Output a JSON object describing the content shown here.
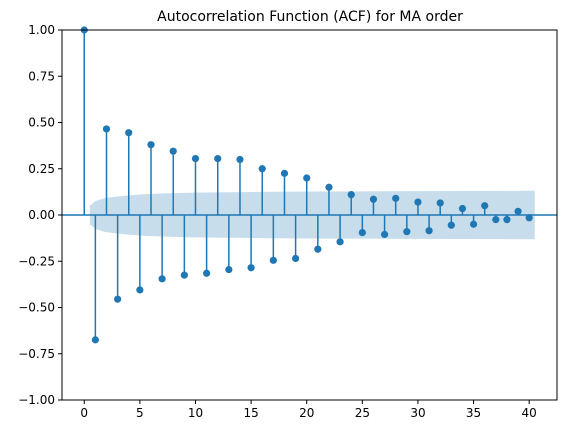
{
  "chart_data": {
    "type": "stem",
    "title": "Autocorrelation Function (ACF) for MA order",
    "xlabel": "",
    "ylabel": "",
    "xlim": [
      -2,
      42.5
    ],
    "ylim": [
      -1.0,
      1.0
    ],
    "xticks": [
      0,
      5,
      10,
      15,
      20,
      25,
      30,
      35,
      40
    ],
    "yticks": [
      -1.0,
      -0.75,
      -0.5,
      -0.25,
      0.0,
      0.25,
      0.5,
      0.75,
      1.0
    ],
    "ytick_labels": [
      "−1.00",
      "−0.75",
      "−0.50",
      "−0.25",
      "0.00",
      "0.25",
      "0.50",
      "0.75",
      "1.00"
    ],
    "grid": false,
    "lags": [
      0,
      1,
      2,
      3,
      4,
      5,
      6,
      7,
      8,
      9,
      10,
      11,
      12,
      13,
      14,
      15,
      16,
      17,
      18,
      19,
      20,
      21,
      22,
      23,
      24,
      25,
      26,
      27,
      28,
      29,
      30,
      31,
      32,
      33,
      34,
      35,
      36,
      37,
      38,
      39,
      40
    ],
    "values": [
      1.0,
      -0.675,
      0.465,
      -0.455,
      0.445,
      -0.405,
      0.38,
      -0.345,
      0.345,
      -0.325,
      0.305,
      -0.315,
      0.305,
      -0.295,
      0.3,
      -0.285,
      0.25,
      -0.245,
      0.225,
      -0.235,
      0.2,
      -0.185,
      0.15,
      -0.145,
      0.11,
      -0.095,
      0.085,
      -0.105,
      0.09,
      -0.09,
      0.07,
      -0.085,
      0.065,
      -0.055,
      0.035,
      -0.05,
      0.05,
      -0.025,
      -0.025,
      0.02,
      -0.015
    ],
    "confidence_band": {
      "lags": [
        0.5,
        1,
        1.5,
        2,
        3,
        4,
        5,
        6,
        8,
        10,
        13,
        16,
        20,
        25,
        30,
        35,
        40.5
      ],
      "upper": [
        0.05,
        0.075,
        0.085,
        0.093,
        0.1,
        0.106,
        0.111,
        0.114,
        0.118,
        0.121,
        0.123,
        0.125,
        0.127,
        0.128,
        0.129,
        0.13,
        0.131
      ]
    },
    "colors": {
      "stem": "#1f77b4",
      "band": "#1f77b4",
      "band_opacity": 0.25,
      "zero_line": "#1f77b4"
    }
  }
}
